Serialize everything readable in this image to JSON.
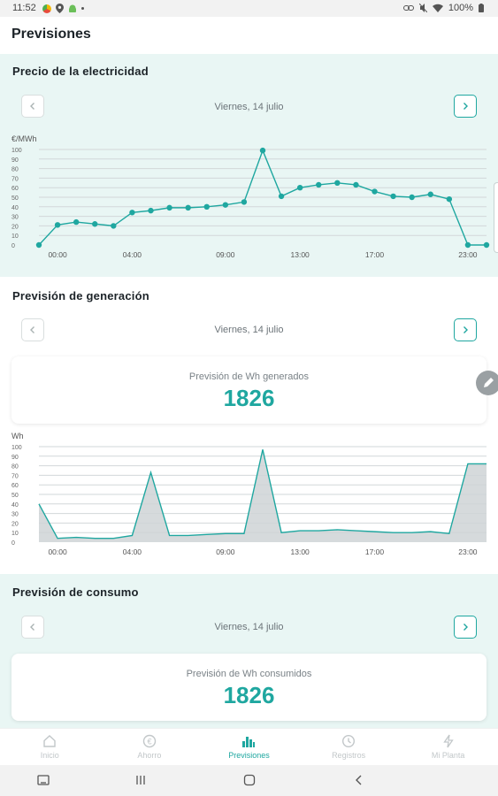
{
  "status_bar": {
    "time": "11:52",
    "battery": "100%",
    "accent_colors": [
      "#f2b705",
      "#e84b3c",
      "#4caf50"
    ]
  },
  "header": {
    "title": "Previsiones"
  },
  "price_section": {
    "title": "Precio de la electricidad",
    "date": "Viernes, 14 julio"
  },
  "generation_section": {
    "title": "Previsión de generación",
    "date": "Viernes, 14 julio",
    "card_label": "Previsión de Wh generados",
    "card_value": "1826"
  },
  "consumption_section": {
    "title": "Previsión de consumo",
    "date": "Viernes, 14 julio",
    "card_label": "Previsión de Wh consumidos",
    "card_value": "1826"
  },
  "bottom_nav": {
    "items": [
      {
        "label": "Inicio",
        "icon": "home-icon"
      },
      {
        "label": "Ahorro",
        "icon": "euro-icon"
      },
      {
        "label": "Previsiones",
        "icon": "bar-chart-icon",
        "active": true
      },
      {
        "label": "Registros",
        "icon": "history-icon"
      },
      {
        "label": "Mi Planta",
        "icon": "bolt-icon"
      }
    ]
  },
  "colors": {
    "accent": "#1fa7a0",
    "section_bg": "#e9f6f4",
    "area_fill": "#cfd3d6"
  },
  "chart_data": [
    {
      "type": "line",
      "ylabel": "€/MWh",
      "ylim": [
        0,
        100
      ],
      "yticks": [
        0,
        10,
        20,
        30,
        40,
        50,
        60,
        70,
        80,
        90,
        100
      ],
      "xlim": [
        -1,
        23
      ],
      "xticks": [
        {
          "x": 0,
          "label": "00:00"
        },
        {
          "x": 4,
          "label": "04:00"
        },
        {
          "x": 9,
          "label": "09:00"
        },
        {
          "x": 13,
          "label": "13:00"
        },
        {
          "x": 17,
          "label": "17:00"
        },
        {
          "x": 22,
          "label": "23:00"
        }
      ],
      "x": [
        -1,
        0,
        1,
        2,
        3,
        4,
        5,
        6,
        7,
        8,
        9,
        10,
        11,
        12,
        13,
        14,
        15,
        16,
        17,
        18,
        19,
        20,
        21,
        22,
        23
      ],
      "values": [
        0,
        21,
        24,
        22,
        20,
        34,
        36,
        39,
        39,
        40,
        42,
        45,
        99,
        51,
        60,
        63,
        65,
        63,
        56,
        51,
        50,
        53,
        48,
        0,
        0
      ],
      "markers": true,
      "grid": true
    },
    {
      "type": "area",
      "ylabel": "Wh",
      "ylim": [
        0,
        100
      ],
      "yticks": [
        0,
        10,
        20,
        30,
        40,
        50,
        60,
        70,
        80,
        90,
        100
      ],
      "xlim": [
        -1,
        23
      ],
      "xticks": [
        {
          "x": 0,
          "label": "00:00"
        },
        {
          "x": 4,
          "label": "04:00"
        },
        {
          "x": 9,
          "label": "09:00"
        },
        {
          "x": 13,
          "label": "13:00"
        },
        {
          "x": 17,
          "label": "17:00"
        },
        {
          "x": 22,
          "label": "23:00"
        }
      ],
      "x": [
        -1,
        0,
        1,
        2,
        3,
        4,
        5,
        6,
        7,
        8,
        9,
        10,
        11,
        12,
        13,
        14,
        15,
        16,
        17,
        18,
        19,
        20,
        21,
        22,
        23
      ],
      "values": [
        40,
        4,
        5,
        4,
        4,
        7,
        73,
        7,
        7,
        8,
        9,
        9,
        97,
        10,
        12,
        12,
        13,
        12,
        11,
        10,
        10,
        11,
        9,
        82,
        82
      ],
      "markers": false,
      "grid": true
    }
  ]
}
